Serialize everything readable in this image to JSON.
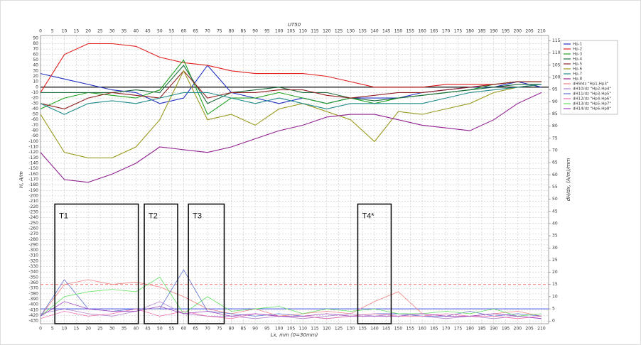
{
  "chart_data": {
    "type": "line",
    "title": "UT50",
    "x_label": "Lx, mm (0=30mm)",
    "y_label": "H, A/m",
    "y2_label": "dH/dx, (A/m)/mm",
    "x": [
      0,
      10,
      20,
      30,
      40,
      50,
      60,
      70,
      80,
      90,
      100,
      110,
      120,
      130,
      140,
      150,
      160,
      170,
      180,
      190,
      200,
      210
    ],
    "xlim": [
      0,
      213
    ],
    "ylim": [
      -435,
      95
    ],
    "y2lim": [
      -1.1,
      117.2
    ],
    "xticks": [
      0,
      5,
      10,
      15,
      20,
      25,
      30,
      35,
      40,
      45,
      50,
      55,
      60,
      65,
      70,
      75,
      80,
      85,
      90,
      95,
      100,
      105,
      110,
      115,
      120,
      125,
      130,
      135,
      140,
      145,
      150,
      155,
      160,
      165,
      170,
      175,
      180,
      185,
      190,
      195,
      200,
      205,
      210
    ],
    "yticks": [
      90,
      80,
      70,
      60,
      50,
      40,
      30,
      20,
      10,
      0,
      -10,
      -20,
      -30,
      -40,
      -50,
      -60,
      -70,
      -80,
      -90,
      -100,
      -110,
      -120,
      -130,
      -140,
      -150,
      -160,
      -170,
      -180,
      -190,
      -200,
      -210,
      -220,
      -230,
      -240,
      -250,
      -260,
      -270,
      -280,
      -290,
      -300,
      -310,
      -320,
      -330,
      -340,
      -350,
      -360,
      -370,
      -380,
      -390,
      -400,
      -410,
      -420,
      -430
    ],
    "y2ticks": [
      0,
      5,
      10,
      15,
      20,
      25,
      30,
      35,
      40,
      45,
      50,
      55,
      60,
      65,
      70,
      75,
      80,
      85,
      90,
      95,
      100,
      105,
      110,
      115
    ],
    "grid": true,
    "zero_line": 0,
    "series": [
      {
        "name": "Hp-1",
        "color": "#2030c0",
        "values": [
          25,
          15,
          5,
          -5,
          -10,
          -30,
          -20,
          40,
          -10,
          -20,
          -30,
          -20,
          -30,
          -20,
          -20,
          -20,
          -10,
          -5,
          0,
          0,
          10,
          0
        ]
      },
      {
        "name": "Hp-2",
        "color": "#e02020",
        "values": [
          -10,
          60,
          80,
          80,
          75,
          55,
          45,
          40,
          30,
          25,
          25,
          25,
          20,
          10,
          0,
          0,
          0,
          5,
          5,
          5,
          10,
          10
        ]
      },
      {
        "name": "Hp-3",
        "color": "#20a020",
        "values": [
          -40,
          -20,
          -10,
          -15,
          -20,
          -5,
          50,
          -50,
          -20,
          -20,
          -10,
          -20,
          -30,
          -20,
          -30,
          -20,
          -15,
          -10,
          -5,
          5,
          10,
          10
        ]
      },
      {
        "name": "Hp-4",
        "color": "#1a6a3a",
        "values": [
          -10,
          -10,
          -10,
          -10,
          -5,
          -10,
          40,
          -30,
          -10,
          -5,
          0,
          -10,
          -10,
          -20,
          -25,
          -20,
          -15,
          -10,
          -5,
          0,
          5,
          5
        ]
      },
      {
        "name": "Hp-5",
        "color": "#902020",
        "values": [
          -30,
          -40,
          -20,
          -10,
          -15,
          -20,
          30,
          -20,
          -10,
          -10,
          -5,
          -5,
          -15,
          -20,
          -15,
          -10,
          -10,
          -5,
          0,
          5,
          10,
          10
        ]
      },
      {
        "name": "Hp-6",
        "color": "#9a9a20",
        "values": [
          -50,
          -120,
          -130,
          -130,
          -110,
          -60,
          30,
          -60,
          -50,
          -70,
          -40,
          -30,
          -45,
          -60,
          -100,
          -45,
          -50,
          -40,
          -30,
          -10,
          0,
          5
        ]
      },
      {
        "name": "Hp-7",
        "color": "#208a8a",
        "values": [
          -30,
          -50,
          -30,
          -25,
          -30,
          -20,
          -10,
          -10,
          -20,
          -30,
          -20,
          -30,
          -40,
          -30,
          -30,
          -30,
          -30,
          -20,
          -10,
          -5,
          0,
          5
        ]
      },
      {
        "name": "Hp-8",
        "color": "#902090",
        "values": [
          -120,
          -170,
          -175,
          -160,
          -140,
          -110,
          -115,
          -120,
          -110,
          -95,
          -80,
          -70,
          -55,
          -50,
          -50,
          -60,
          -70,
          -75,
          -80,
          -60,
          -30,
          -10
        ]
      },
      {
        "name": "dH9/dz \"Hp1-Hp3\"",
        "color": "#f08080",
        "axis": "y2",
        "values": [
          2,
          15,
          17,
          15,
          16,
          14,
          10,
          5,
          3,
          5,
          2,
          3,
          4,
          3,
          8,
          12,
          3,
          2,
          2,
          3,
          4,
          2
        ]
      },
      {
        "name": "dH10/dz \"Hp2-Hp4\"",
        "color": "#b080d0",
        "axis": "y2",
        "values": [
          3,
          5,
          3,
          2,
          4,
          8,
          3,
          2,
          2,
          1,
          2,
          1,
          2,
          3,
          2,
          3,
          2,
          1,
          2,
          1,
          2,
          1
        ]
      },
      {
        "name": "dH11/dz \"Hp3-Hp5\"",
        "color": "#6070d0",
        "axis": "y2",
        "values": [
          2,
          17,
          5,
          4,
          5,
          5,
          21,
          4,
          3,
          2,
          3,
          2,
          1,
          2,
          3,
          3,
          2,
          2,
          4,
          2,
          3,
          2
        ]
      },
      {
        "name": "dH12/dz \"Hp4-Hp6\"",
        "color": "#f070b0",
        "axis": "y2",
        "values": [
          1,
          4,
          2,
          3,
          5,
          2,
          4,
          2,
          1,
          3,
          2,
          2,
          1,
          2,
          3,
          2,
          2,
          3,
          2,
          2,
          1,
          2
        ]
      },
      {
        "name": "dH13/dz \"Hp5-Hp7\"",
        "color": "#60e060",
        "axis": "y2",
        "values": [
          2,
          10,
          12,
          13,
          12,
          18,
          3,
          10,
          4,
          5,
          6,
          3,
          5,
          4,
          5,
          3,
          3,
          4,
          3,
          5,
          2,
          3
        ]
      },
      {
        "name": "dH14/dz \"Hp6-Hp8\"",
        "color": "#a040c0",
        "axis": "y2",
        "values": [
          2,
          8,
          5,
          4,
          4,
          6,
          3,
          4,
          2,
          3,
          2,
          2,
          3,
          2,
          2,
          2,
          3,
          2,
          2,
          3,
          2,
          1
        ]
      }
    ],
    "thresholds": [
      {
        "value": 15,
        "color": "#f05050",
        "dash": true
      },
      {
        "value": 5,
        "color": "#3040e0",
        "dash": false
      }
    ],
    "annotations": [
      {
        "label": "T1",
        "x": [
          6,
          41
        ],
        "y_top": -215
      },
      {
        "label": "T2",
        "x": [
          43.5,
          57.5
        ],
        "y_top": -215
      },
      {
        "label": "T3",
        "x": [
          62,
          77
        ],
        "y_top": -215
      },
      {
        "label": "T4*",
        "x": [
          133,
          147
        ],
        "y_top": -215
      }
    ]
  }
}
